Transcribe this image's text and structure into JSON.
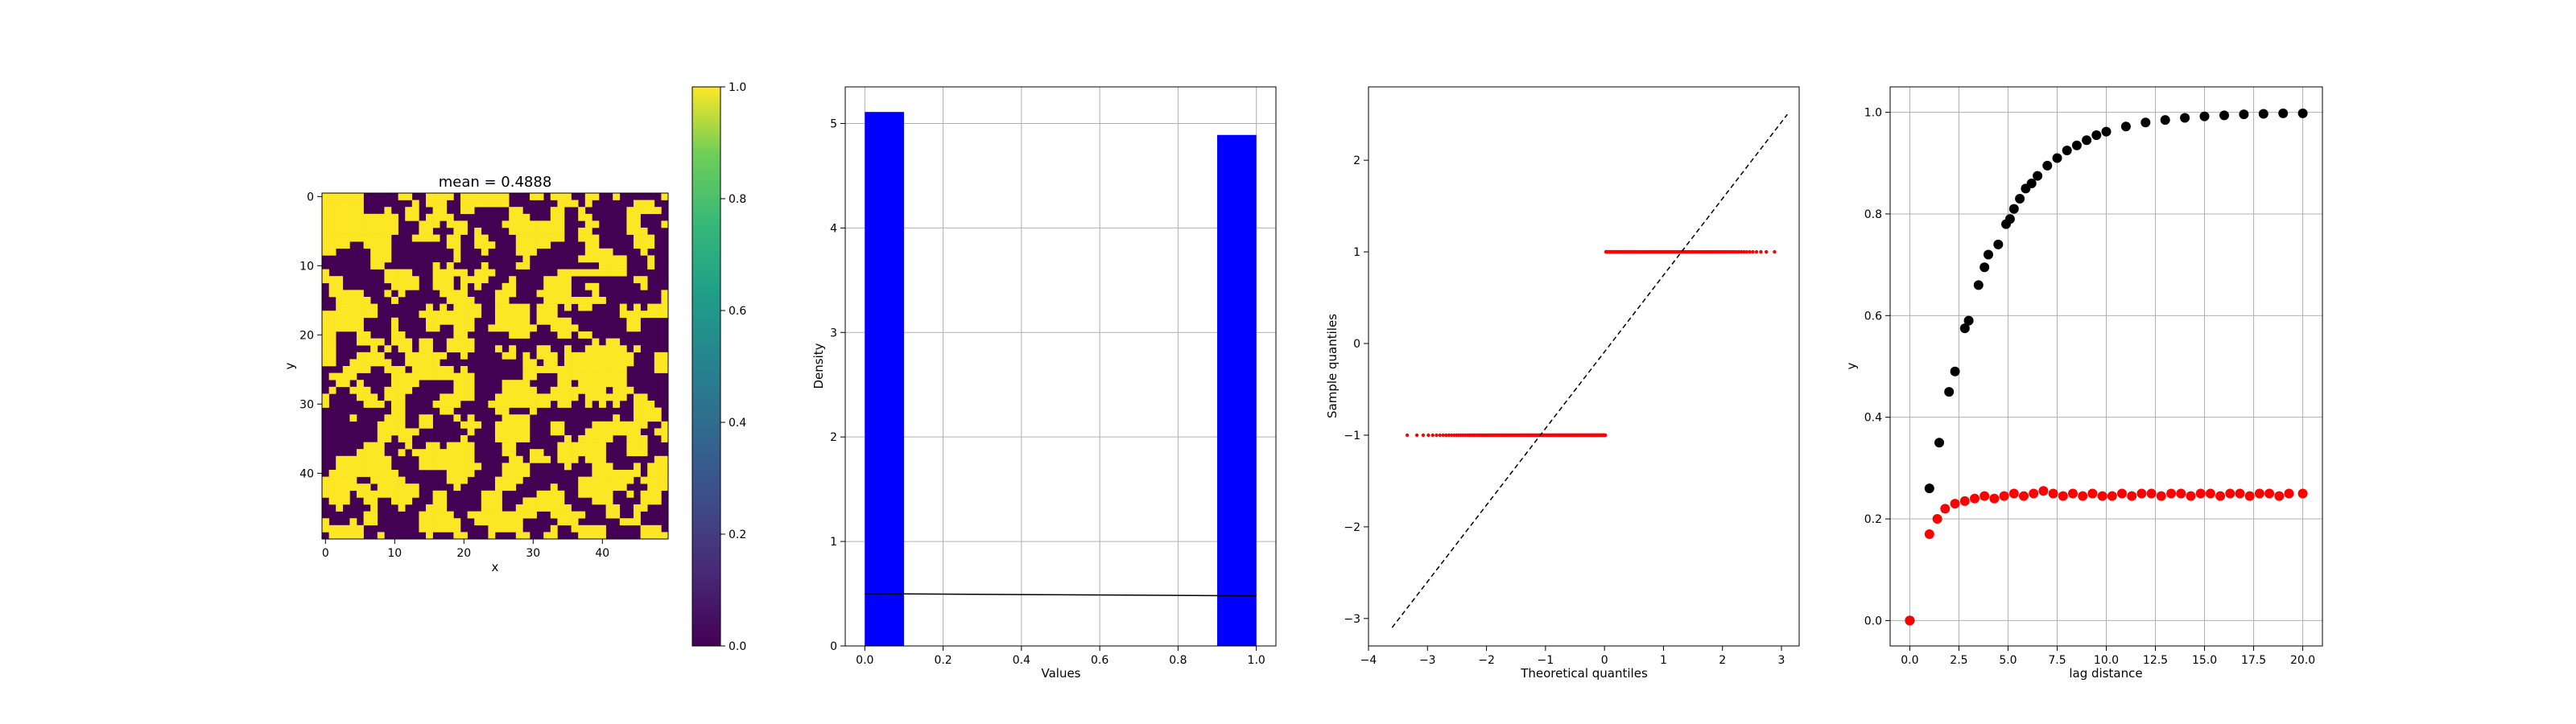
{
  "chart_data": [
    {
      "type": "heatmap",
      "title": "mean = 0.4888",
      "xlabel": "x",
      "ylabel": "y",
      "x_ticks": [
        "0",
        "10",
        "20",
        "30",
        "40"
      ],
      "y_ticks": [
        "0",
        "10",
        "20",
        "30",
        "40"
      ],
      "grid_size": [
        50,
        50
      ],
      "mean": 0.4888,
      "colormap": "viridis",
      "value_range": [
        0,
        1
      ],
      "colorbar_ticks": [
        "0.0",
        "0.2",
        "0.4",
        "0.6",
        "0.8",
        "1.0"
      ]
    },
    {
      "type": "bar",
      "xlabel": "Values",
      "ylabel": "Density",
      "xlim": [
        -0.05,
        1.05
      ],
      "ylim": [
        0,
        5.35
      ],
      "x_ticks": [
        "0.0",
        "0.2",
        "0.4",
        "0.6",
        "0.8",
        "1.0"
      ],
      "y_ticks": [
        "0",
        "1",
        "2",
        "3",
        "4",
        "5"
      ],
      "grid": true,
      "bins": [
        {
          "x0": 0.0,
          "x1": 0.1,
          "value": 5.11
        },
        {
          "x0": 0.9,
          "x1": 1.0,
          "value": 4.89
        }
      ],
      "bar_color": "#0000ff",
      "pdf_line": {
        "x": [
          0.0,
          1.0
        ],
        "y": [
          0.5,
          0.48
        ],
        "color": "#000000"
      }
    },
    {
      "type": "scatter",
      "xlabel": "Theoretical quantiles",
      "ylabel": "Sample quantiles",
      "xlim": [
        -4,
        3.3
      ],
      "ylim": [
        -3.3,
        2.8
      ],
      "x_ticks": [
        "−4",
        "−3",
        "−2",
        "−1",
        "0",
        "1",
        "2",
        "3"
      ],
      "y_ticks": [
        "−3",
        "−2",
        "−1",
        "0",
        "1",
        "2"
      ],
      "point_color": "#ff0000",
      "groups": [
        {
          "y": -1,
          "x_range": [
            -3.6,
            0.02
          ]
        },
        {
          "y": 1,
          "x_range": [
            0.02,
            3.1
          ]
        }
      ],
      "reference_line": {
        "x": [
          -3.6,
          3.1
        ],
        "y": [
          -3.1,
          2.5
        ],
        "style": "dashed",
        "color": "#000000"
      }
    },
    {
      "type": "scatter",
      "xlabel": "lag distance",
      "ylabel": "y",
      "xlim": [
        -1,
        21
      ],
      "ylim": [
        -0.05,
        1.05
      ],
      "x_ticks": [
        "0.0",
        "2.5",
        "5.0",
        "7.5",
        "10.0",
        "12.5",
        "15.0",
        "17.5",
        "20.0"
      ],
      "y_ticks": [
        "0.0",
        "0.2",
        "0.4",
        "0.6",
        "0.8",
        "1.0"
      ],
      "grid": true,
      "series": [
        {
          "color": "#000000",
          "x": [
            0,
            1,
            1.5,
            2,
            2.3,
            2.8,
            3,
            3.5,
            3.8,
            4,
            4.5,
            4.9,
            5.1,
            5.3,
            5.6,
            5.9,
            6.2,
            6.5,
            7,
            7.5,
            8,
            8.5,
            9,
            9.5,
            10,
            11,
            12,
            13,
            14,
            15,
            16,
            17,
            18,
            19,
            20
          ],
          "y": [
            0.0,
            0.26,
            0.35,
            0.45,
            0.49,
            0.575,
            0.59,
            0.66,
            0.695,
            0.72,
            0.74,
            0.78,
            0.79,
            0.81,
            0.83,
            0.85,
            0.86,
            0.875,
            0.895,
            0.91,
            0.925,
            0.935,
            0.945,
            0.955,
            0.962,
            0.972,
            0.98,
            0.985,
            0.989,
            0.992,
            0.994,
            0.996,
            0.997,
            0.998,
            0.998
          ]
        },
        {
          "color": "#ff0000",
          "x": [
            0,
            1,
            1.4,
            1.8,
            2.3,
            2.8,
            3.3,
            3.8,
            4.3,
            4.8,
            5.3,
            5.8,
            6.3,
            6.8,
            7.3,
            7.8,
            8.3,
            8.8,
            9.3,
            9.8,
            10.3,
            10.8,
            11.3,
            11.8,
            12.3,
            12.8,
            13.3,
            13.8,
            14.3,
            14.8,
            15.3,
            15.8,
            16.3,
            16.8,
            17.3,
            17.8,
            18.3,
            18.8,
            19.3,
            20
          ],
          "y": [
            0.0,
            0.17,
            0.2,
            0.22,
            0.23,
            0.235,
            0.24,
            0.245,
            0.24,
            0.245,
            0.25,
            0.245,
            0.25,
            0.255,
            0.25,
            0.245,
            0.25,
            0.245,
            0.25,
            0.245,
            0.245,
            0.25,
            0.245,
            0.25,
            0.25,
            0.245,
            0.25,
            0.25,
            0.245,
            0.25,
            0.25,
            0.245,
            0.25,
            0.25,
            0.245,
            0.25,
            0.25,
            0.245,
            0.25,
            0.25
          ]
        }
      ]
    }
  ]
}
